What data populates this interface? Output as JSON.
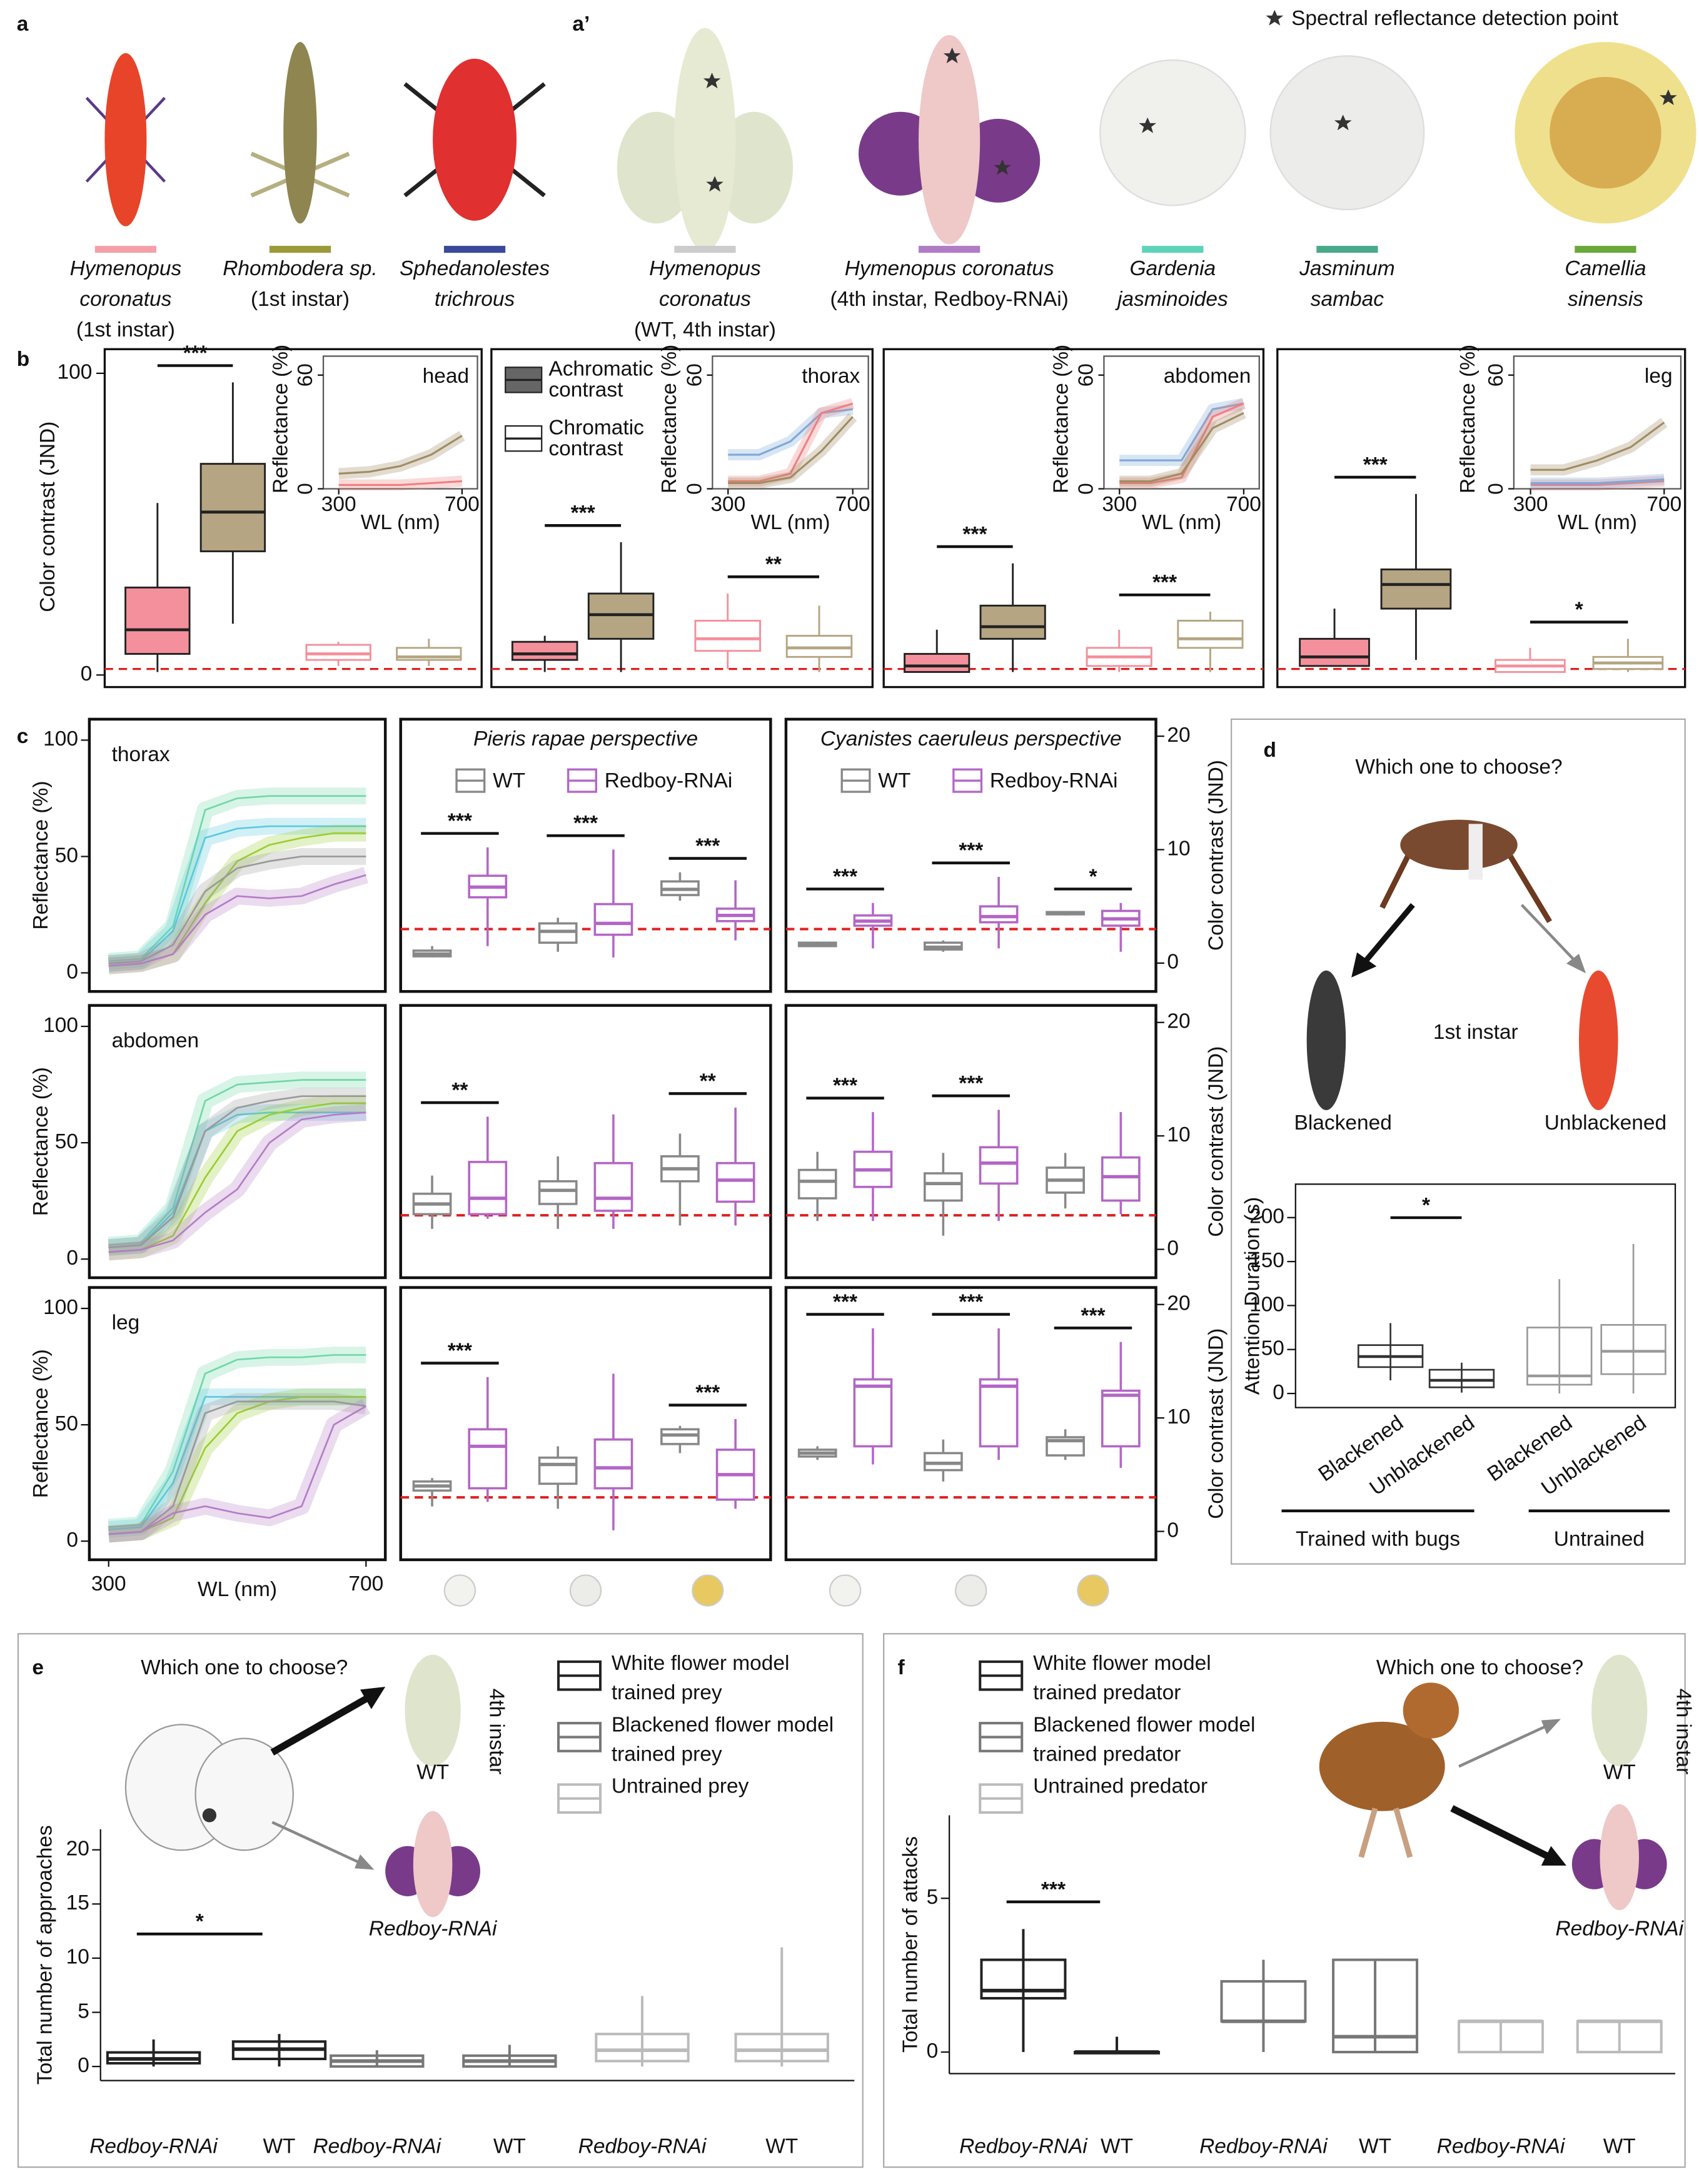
{
  "panel_a": {
    "label": "a",
    "captions": [
      {
        "lines": [
          "Hymenopus",
          "coronatus",
          "(1st instar)"
        ],
        "color": "#f4a0aa"
      },
      {
        "lines": [
          "Rhombodera sp.",
          "(1st instar)"
        ],
        "color": "#9a9a3a"
      },
      {
        "lines": [
          "Sphedanolestes",
          "trichrous"
        ],
        "color": "#3a4a9a"
      }
    ]
  },
  "panel_a2": {
    "label": "a’",
    "legend": "Spectral reflectance detection point",
    "captions": [
      {
        "lines": [
          "Hymenopus",
          "coronatus",
          "(WT, 4th instar)"
        ],
        "color": "#cccccc"
      },
      {
        "lines": [
          "Hymenopus coronatus",
          "(4th instar, Redboy-RNAi)"
        ],
        "color": "#b07cc6"
      },
      {
        "lines": [
          "Gardenia",
          "jasminoides"
        ],
        "color": "#5fd3b8"
      },
      {
        "lines": [
          "Jasminum",
          "sambac"
        ],
        "color": "#4aa98a"
      },
      {
        "lines": [
          "Camellia",
          "sinensis"
        ],
        "color": "#6aa83a"
      }
    ]
  },
  "panel_b": {
    "label": "b",
    "ylabel": "Color contrast (JND)",
    "ylim": [
      -4,
      108
    ],
    "yticks": [
      0,
      100
    ],
    "threshold": 2,
    "legend": [
      [
        "Achromatic",
        "contrast"
      ],
      [
        "Chromatic",
        "contrast"
      ]
    ],
    "colors": [
      "#f4909b",
      "#b5a582"
    ],
    "inset": {
      "ylabel": "Reflectance (%)",
      "xlabel": "WL (nm)",
      "xlim": [
        250,
        750
      ],
      "ylim": [
        0,
        70
      ],
      "xticks": [
        300,
        700
      ],
      "yticks": [
        0,
        60
      ],
      "x": [
        300,
        400,
        500,
        600,
        700
      ]
    },
    "panels": [
      {
        "name": "head",
        "boxes": [
          [
            1,
            7,
            15,
            29,
            57
          ],
          [
            17,
            41,
            54,
            70,
            97
          ],
          [
            3,
            5,
            7,
            10,
            11
          ],
          [
            3,
            5,
            6,
            9,
            12
          ]
        ],
        "sig": [
          "***",
          null
        ],
        "spectra": [
          {
            "color": "#a08c64",
            "values": [
              8,
              9,
              12,
              18,
              28
            ]
          },
          {
            "color": "#f08080",
            "values": [
              2,
              2,
              2,
              3,
              4
            ]
          }
        ]
      },
      {
        "name": "thorax",
        "boxes": [
          [
            1,
            5,
            7,
            11,
            13
          ],
          [
            1,
            12,
            20,
            27,
            44
          ],
          [
            2,
            8,
            12,
            18,
            27
          ],
          [
            1,
            6,
            9,
            13,
            23
          ]
        ],
        "sig": [
          "***",
          "**"
        ],
        "spectra": [
          {
            "color": "#7fa8d8",
            "values": [
              18,
              18,
              25,
              40,
              42
            ]
          },
          {
            "color": "#f08080",
            "values": [
              4,
              4,
              8,
              40,
              45
            ]
          },
          {
            "color": "#a08c64",
            "values": [
              3,
              3,
              6,
              20,
              38
            ]
          }
        ]
      },
      {
        "name": "abdomen",
        "boxes": [
          [
            1,
            1,
            3,
            7,
            15
          ],
          [
            1,
            12,
            16,
            23,
            37
          ],
          [
            1,
            3,
            6,
            9,
            15
          ],
          [
            1,
            9,
            12,
            18,
            21
          ]
        ],
        "sig": [
          "***",
          "***"
        ],
        "spectra": [
          {
            "color": "#7fa8d8",
            "values": [
              15,
              15,
              15,
              42,
              45
            ]
          },
          {
            "color": "#f08080",
            "values": [
              3,
              3,
              6,
              38,
              45
            ]
          },
          {
            "color": "#a08c64",
            "values": [
              4,
              4,
              8,
              32,
              40
            ]
          }
        ]
      },
      {
        "name": "leg",
        "boxes": [
          [
            3,
            3,
            6,
            12,
            22
          ],
          [
            5,
            22,
            30,
            35,
            60
          ],
          [
            1,
            1,
            3,
            5,
            9
          ],
          [
            1,
            2,
            4,
            6,
            12
          ]
        ],
        "sig": [
          "***",
          "*"
        ],
        "spectra": [
          {
            "color": "#a08c64",
            "values": [
              10,
              10,
              15,
              22,
              35
            ]
          },
          {
            "color": "#f08080",
            "values": [
              2,
              2,
              2,
              3,
              4
            ]
          },
          {
            "color": "#7fa8d8",
            "values": [
              3,
              3,
              3,
              4,
              5
            ]
          }
        ]
      }
    ]
  },
  "panel_c": {
    "label": "c",
    "ylabel": "Reflectance (%)",
    "xlabel": "WL (nm)",
    "xlim": [
      270,
      730
    ],
    "xticks": [
      300,
      700
    ],
    "ylim": [
      -8,
      109
    ],
    "yticks": [
      0,
      50,
      100
    ],
    "x": [
      300,
      350,
      400,
      450,
      500,
      550,
      600,
      650,
      700
    ],
    "y2label": "Color contrast (JND)",
    "y2lim": [
      -2.5,
      21.5
    ],
    "y2ticks": [
      0,
      10,
      20
    ],
    "threshold": 3,
    "perspectives": [
      "Pieris rapae perspective",
      "Cyanistes caeruleus perspective"
    ],
    "legend": [
      "WT",
      "Redboy-RNAi"
    ],
    "colors": [
      "#888888",
      "#b366c6"
    ],
    "spectra_colors": [
      "#6fd8a8",
      "#5bc8e0",
      "#9acd32",
      "#999999",
      "#b57cc6"
    ],
    "rows": [
      {
        "name": "thorax",
        "spectra": [
          [
            5,
            6,
            20,
            70,
            75,
            76,
            76,
            76,
            76
          ],
          [
            4,
            5,
            18,
            58,
            62,
            63,
            63,
            63,
            63
          ],
          [
            3,
            4,
            8,
            30,
            48,
            55,
            58,
            60,
            60
          ],
          [
            4,
            5,
            12,
            35,
            45,
            48,
            50,
            50,
            50
          ],
          [
            3,
            4,
            8,
            25,
            33,
            32,
            33,
            38,
            42
          ]
        ],
        "boxes": [
          [
            [
              0.5,
              0.6,
              0.8,
              1.1,
              1.5
            ],
            [
              1.5,
              5.8,
              6.7,
              7.7,
              10.2
            ],
            [
              1,
              1.8,
              2.8,
              3.5,
              4
            ],
            [
              0.5,
              2.5,
              3.5,
              5.2,
              10
            ],
            [
              5.5,
              6,
              6.5,
              7.2,
              8
            ],
            [
              2,
              3.7,
              4.2,
              4.8,
              7.3
            ]
          ],
          [
            [
              1.4,
              1.5,
              1.7,
              1.8,
              1.9
            ],
            [
              1.3,
              3.3,
              3.7,
              4.2,
              5.3
            ],
            [
              1,
              1.2,
              1.4,
              1.8,
              2
            ],
            [
              1.3,
              3.6,
              4.1,
              5,
              7.6
            ],
            [
              4.2,
              4.3,
              4.4,
              4.5,
              4.6
            ],
            [
              1,
              3.3,
              3.9,
              4.6,
              5.3
            ]
          ]
        ],
        "sig": [
          [
            "***",
            "***",
            "***"
          ],
          [
            "***",
            "***",
            "*"
          ]
        ]
      },
      {
        "name": "abdomen",
        "spectra": [
          [
            6,
            7,
            22,
            68,
            75,
            76,
            77,
            77,
            77
          ],
          [
            5,
            6,
            20,
            55,
            62,
            63,
            63,
            63,
            63
          ],
          [
            3,
            4,
            10,
            35,
            55,
            62,
            65,
            67,
            67
          ],
          [
            5,
            6,
            18,
            55,
            65,
            68,
            70,
            70,
            70
          ],
          [
            3,
            4,
            8,
            20,
            30,
            50,
            60,
            62,
            63
          ]
        ],
        "boxes": [
          [
            [
              1.8,
              3.1,
              4,
              4.9,
              6.5
            ],
            [
              2.7,
              3.1,
              4.5,
              7.7,
              11.7
            ],
            [
              1.8,
              4,
              5.2,
              6,
              8.2
            ],
            [
              1.8,
              3.4,
              4.5,
              7.6,
              11.9
            ],
            [
              2.1,
              6,
              7.1,
              8.2,
              10.2
            ],
            [
              2.1,
              4.2,
              6.1,
              7.6,
              12.5
            ]
          ],
          [
            [
              2.5,
              4.5,
              6,
              7,
              8.6
            ],
            [
              2.5,
              5.5,
              7,
              8.6,
              12.1
            ],
            [
              1.2,
              4.3,
              5.8,
              6.7,
              8.5
            ],
            [
              2.5,
              5.8,
              7.6,
              9,
              12.3
            ],
            [
              3.6,
              5,
              6.1,
              7.2,
              8.5
            ],
            [
              3.1,
              4.3,
              6.4,
              8.1,
              12.1
            ]
          ]
        ],
        "sig": [
          [
            "**",
            null,
            "**"
          ],
          [
            "***",
            "***",
            null
          ]
        ]
      },
      {
        "name": "leg",
        "spectra": [
          [
            6,
            7,
            30,
            72,
            78,
            79,
            79,
            80,
            80
          ],
          [
            5,
            6,
            25,
            62,
            62,
            62,
            62,
            62,
            62
          ],
          [
            3,
            4,
            10,
            40,
            55,
            60,
            62,
            62,
            62
          ],
          [
            3,
            4,
            15,
            55,
            60,
            60,
            60,
            60,
            58
          ],
          [
            3,
            4,
            12,
            15,
            12,
            10,
            15,
            50,
            58
          ]
        ],
        "boxes": [
          [
            [
              2.2,
              3.6,
              4,
              4.4,
              4.7
            ],
            [
              2.6,
              3.8,
              7.5,
              9,
              13.6
            ],
            [
              2,
              4.2,
              5.9,
              6.5,
              7.5
            ],
            [
              0.1,
              3.8,
              5.6,
              8.1,
              13.9
            ],
            [
              6.9,
              7.7,
              8.5,
              9,
              9.3
            ],
            [
              2,
              2.8,
              5,
              7.2,
              9.9
            ]
          ],
          [
            [
              6.3,
              6.6,
              6.9,
              7.2,
              7.5
            ],
            [
              5.9,
              7.5,
              12.8,
              13.4,
              17.9
            ],
            [
              4.4,
              5.4,
              6,
              6.9,
              8.1
            ],
            [
              6.3,
              7.5,
              12.8,
              13.4,
              17.9
            ],
            [
              6.3,
              6.7,
              8,
              8.3,
              9
            ],
            [
              5.6,
              7.5,
              12,
              12.4,
              16.7
            ]
          ]
        ],
        "sig": [
          [
            "***",
            null,
            "***"
          ],
          [
            "***",
            "***",
            "***"
          ]
        ]
      }
    ]
  },
  "panel_d": {
    "label": "d",
    "title": "Which one to choose?",
    "instar": "1st instar",
    "choices": [
      "Blackened",
      "Unblackened"
    ],
    "ylabel": "Attention Duration (s)",
    "ylim": [
      -16,
      238
    ],
    "yticks": [
      0,
      50,
      100,
      150,
      200
    ],
    "boxes": [
      [
        15,
        30,
        42,
        55,
        80
      ],
      [
        1,
        7,
        15,
        27,
        35
      ],
      [
        0,
        10,
        20,
        75,
        130
      ],
      [
        0,
        22,
        48,
        78,
        170
      ]
    ],
    "xlabels": [
      "Blackened",
      "Unblackened",
      "Blackened",
      "Unblackened"
    ],
    "groups": [
      "Trained with bugs",
      "Untrained"
    ],
    "colors": [
      "#333333",
      "#999999"
    ],
    "sig": [
      "*",
      null
    ]
  },
  "panel_e": {
    "label": "e",
    "title": "Which one to choose?",
    "ylabel": "Total number of approaches",
    "ylim": [
      -1.3,
      21.9
    ],
    "yticks": [
      0,
      5,
      10,
      15,
      20
    ],
    "legend": [
      [
        "White flower model",
        "trained prey"
      ],
      [
        "Blackened flower model",
        "trained prey"
      ],
      [
        "Untrained prey"
      ]
    ],
    "colors": [
      "#222222",
      "#777777",
      "#bbbbbb"
    ],
    "boxes": [
      [
        0,
        0.3,
        0.7,
        1.3,
        2.5
      ],
      [
        0,
        0.7,
        1.6,
        2.3,
        3
      ],
      [
        0,
        0,
        0.5,
        1,
        1.5
      ],
      [
        0,
        0,
        0.5,
        1,
        2
      ],
      [
        0,
        0.5,
        1.5,
        3,
        6.5
      ],
      [
        0,
        0.5,
        1.5,
        3,
        11
      ]
    ],
    "xlabels": [
      "Redboy-RNAi",
      "WT",
      "Redboy-RNAi",
      "WT",
      "Redboy-RNAi",
      "WT"
    ],
    "sig": [
      "*",
      null,
      null
    ],
    "icons": {
      "wt": "WT",
      "rnai": "Redboy-RNAi",
      "instar": "4th instar"
    }
  },
  "panel_f": {
    "label": "f",
    "title": "Which one to choose?",
    "ylabel": "Total number of attacks",
    "ylim": [
      -0.7,
      7.7
    ],
    "yticks": [
      0,
      5
    ],
    "legend": [
      [
        "White flower model",
        "trained predator"
      ],
      [
        "Blackened flower model",
        "trained predator"
      ],
      [
        "Untrained predator"
      ]
    ],
    "colors": [
      "#222222",
      "#777777",
      "#bbbbbb"
    ],
    "boxes": [
      [
        0,
        1.75,
        2,
        3,
        4
      ],
      [
        0,
        0,
        0,
        0,
        0.5
      ],
      [
        0,
        1,
        1,
        2.3,
        3
      ],
      [
        0,
        0,
        0.5,
        3,
        3
      ],
      [
        0,
        0,
        1,
        1,
        1
      ],
      [
        0,
        0,
        1,
        1,
        1
      ]
    ],
    "xlabels": [
      "Redboy-RNAi",
      "WT",
      "Redboy-RNAi",
      "WT",
      "Redboy-RNAi",
      "WT"
    ],
    "sig": [
      "***",
      null,
      null
    ],
    "icons": {
      "wt": "WT",
      "rnai": "Redboy-RNAi",
      "instar": "4th instar"
    }
  }
}
